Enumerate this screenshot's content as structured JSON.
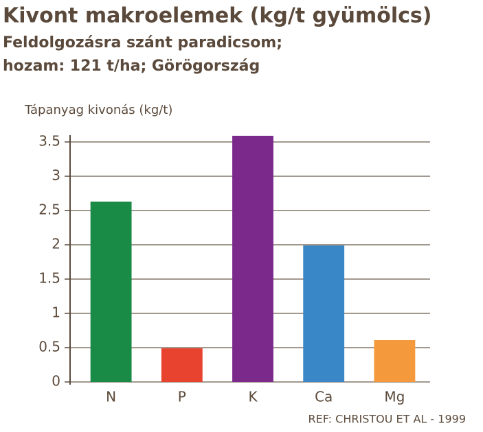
{
  "chart_data": {
    "type": "bar",
    "title": "Kivont makroelemek (kg/t gyümölcs)",
    "subtitle": [
      "Feldolgozásra szánt paradicsom;",
      "hozam: 121 t/ha; Görögország"
    ],
    "y_label": "Tápanyag kivonás (kg/t)",
    "categories": [
      "N",
      "P",
      "K",
      "Ca",
      "Mg"
    ],
    "values": [
      2.63,
      0.49,
      3.59,
      1.99,
      0.61
    ],
    "colors": [
      "#1a8a47",
      "#e8432f",
      "#7b2a8c",
      "#3a87c8",
      "#f59a3c"
    ],
    "ylim": [
      0,
      3.6
    ],
    "yticks": [
      0,
      0.5,
      1,
      1.5,
      2,
      2.5,
      3,
      3.5
    ],
    "grid": true,
    "source": "REF: CHRISTOU ET AL - 1999"
  }
}
